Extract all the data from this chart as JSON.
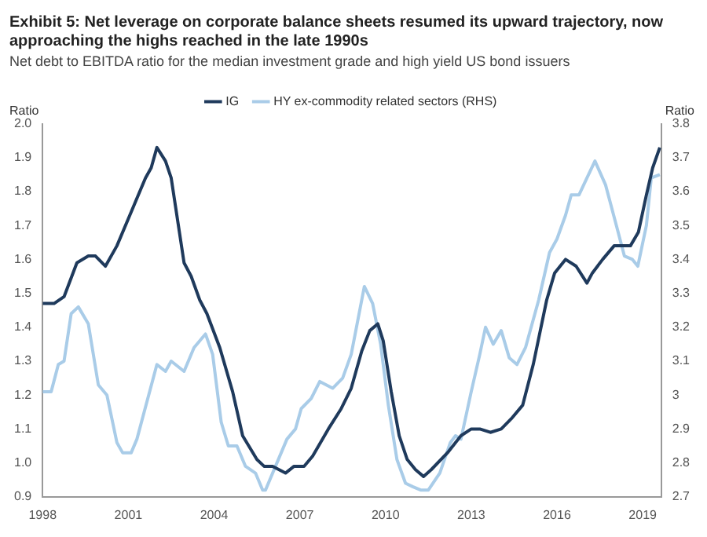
{
  "chart_data": {
    "type": "line",
    "title": "Exhibit 5: Net leverage on corporate balance sheets resumed its upward trajectory, now approaching the highs reached in the late 1990s",
    "subtitle": "Net debt to EBITDA ratio for the median investment grade and high yield US bond issuers",
    "ylabel": "Ratio",
    "y2label": "Ratio",
    "xlim": [
      1998,
      2019.65
    ],
    "xticks": [
      1998,
      2001,
      2004,
      2007,
      2010,
      2013,
      2016,
      2019
    ],
    "ylim": [
      0.9,
      2.0
    ],
    "yticks": [
      0.9,
      {
        "value": 1,
        "label": "1.0"
      },
      1.1,
      1.2,
      1.3,
      1.4,
      1.5,
      1.6,
      1.7,
      1.8,
      1.9,
      {
        "value": 2,
        "label": "2.0"
      }
    ],
    "y2lim": [
      2.7,
      3.8
    ],
    "y2ticks": [
      2.7,
      2.8,
      2.9,
      3,
      3.1,
      3.2,
      3.3,
      3.4,
      3.5,
      3.6,
      3.7,
      3.8
    ],
    "grid": false,
    "legend": "top",
    "marker": "none",
    "line_style": "solid",
    "series": [
      {
        "name": "IG",
        "color": "#1f3a5c",
        "x": [
          1998.0,
          1998.4,
          1998.75,
          1999.2,
          1999.6,
          1999.85,
          2000.2,
          2000.6,
          2001.1,
          2001.6,
          2001.8,
          2002.0,
          2002.3,
          2002.5,
          2002.95,
          2003.2,
          2003.5,
          2003.75,
          2004.2,
          2004.65,
          2005.0,
          2005.5,
          2005.75,
          2006.05,
          2006.5,
          2006.8,
          2007.15,
          2007.45,
          2008.0,
          2008.45,
          2008.8,
          2009.17,
          2009.45,
          2009.73,
          2009.92,
          2010.2,
          2010.48,
          2010.76,
          2011.05,
          2011.33,
          2011.6,
          2012.17,
          2012.64,
          2013.0,
          2013.3,
          2013.67,
          2014.05,
          2014.4,
          2014.8,
          2015.17,
          2015.64,
          2015.92,
          2016.3,
          2016.67,
          2017.05,
          2017.24,
          2017.6,
          2018.0,
          2018.28,
          2018.57,
          2018.85,
          2019.13,
          2019.35,
          2019.6
        ],
        "values": [
          1.47,
          1.47,
          1.49,
          1.59,
          1.61,
          1.61,
          1.58,
          1.64,
          1.74,
          1.84,
          1.87,
          1.93,
          1.89,
          1.84,
          1.59,
          1.55,
          1.48,
          1.44,
          1.34,
          1.21,
          1.08,
          1.01,
          0.99,
          0.99,
          0.97,
          0.99,
          0.99,
          1.02,
          1.1,
          1.16,
          1.22,
          1.33,
          1.39,
          1.41,
          1.36,
          1.21,
          1.08,
          1.01,
          0.98,
          0.96,
          0.98,
          1.03,
          1.08,
          1.1,
          1.1,
          1.09,
          1.1,
          1.13,
          1.17,
          1.29,
          1.48,
          1.56,
          1.6,
          1.58,
          1.53,
          1.56,
          1.6,
          1.64,
          1.64,
          1.64,
          1.68,
          1.79,
          1.87,
          1.93
        ]
      },
      {
        "name": "HY ex-commodity related sectors (RHS)",
        "color": "#a9cce8",
        "axis": "y2",
        "x": [
          1998.0,
          1998.3,
          1998.55,
          1998.75,
          1999.0,
          1999.25,
          1999.6,
          1999.95,
          2000.25,
          2000.6,
          2000.8,
          2001.1,
          2001.3,
          2001.65,
          2002.0,
          2002.3,
          2002.5,
          2002.95,
          2003.3,
          2003.7,
          2003.95,
          2004.25,
          2004.5,
          2004.8,
          2005.1,
          2005.45,
          2005.7,
          2005.8,
          2006.2,
          2006.55,
          2006.85,
          2007.05,
          2007.4,
          2007.7,
          2008.15,
          2008.5,
          2008.8,
          2009.26,
          2009.55,
          2009.83,
          2010.1,
          2010.4,
          2010.7,
          2010.95,
          2011.23,
          2011.5,
          2011.9,
          2012.27,
          2012.45,
          2012.64,
          2013.0,
          2013.3,
          2013.5,
          2013.77,
          2014.05,
          2014.33,
          2014.6,
          2014.9,
          2015.36,
          2015.74,
          2016.0,
          2016.3,
          2016.5,
          2016.77,
          2017.05,
          2017.33,
          2017.7,
          2018.08,
          2018.36,
          2018.64,
          2018.83,
          2019.13,
          2019.3,
          2019.6
        ],
        "values": [
          3.01,
          3.01,
          3.09,
          3.1,
          3.24,
          3.26,
          3.21,
          3.03,
          3.0,
          2.86,
          2.83,
          2.83,
          2.87,
          2.98,
          3.09,
          3.07,
          3.1,
          3.07,
          3.14,
          3.18,
          3.12,
          2.92,
          2.85,
          2.85,
          2.79,
          2.77,
          2.72,
          2.72,
          2.8,
          2.87,
          2.9,
          2.96,
          2.99,
          3.04,
          3.02,
          3.05,
          3.12,
          3.32,
          3.27,
          3.15,
          2.97,
          2.81,
          2.74,
          2.73,
          2.72,
          2.72,
          2.77,
          2.86,
          2.88,
          2.87,
          3.01,
          3.12,
          3.2,
          3.15,
          3.19,
          3.11,
          3.09,
          3.14,
          3.28,
          3.42,
          3.46,
          3.53,
          3.59,
          3.59,
          3.64,
          3.69,
          3.62,
          3.5,
          3.41,
          3.4,
          3.38,
          3.5,
          3.64,
          3.65
        ]
      }
    ]
  }
}
